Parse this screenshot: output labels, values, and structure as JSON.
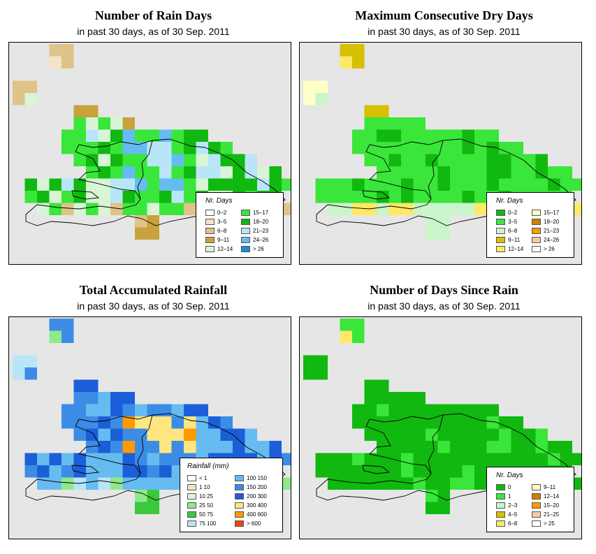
{
  "panels": [
    {
      "title": "Number of Rain Days",
      "subtitle": "in past 30 days, as of  30 Sep. 2011",
      "legend": {
        "title": "Nr. Days",
        "items": [
          {
            "label": "0–2",
            "color": "#ffffff"
          },
          {
            "label": "3–5",
            "color": "#f3e4c4"
          },
          {
            "label": "6–8",
            "color": "#dfc389"
          },
          {
            "label": "9–11",
            "color": "#c9a23c"
          },
          {
            "label": "12–14",
            "color": "#d8f5d6"
          },
          {
            "label": "15–17",
            "color": "#39e639"
          },
          {
            "label": "18–20",
            "color": "#10b810"
          },
          {
            "label": "21–23",
            "color": "#b8e6f8"
          },
          {
            "label": "24–26",
            "color": "#66bcf0"
          },
          {
            "label": "> 26",
            "color": "#1690d0"
          }
        ]
      }
    },
    {
      "title": "Maximum Consecutive Dry Days",
      "subtitle": "in past 30 days, as of  30 Sep. 2011",
      "legend": {
        "title": "Nr. Days",
        "items": [
          {
            "label": "0–2",
            "color": "#10b810"
          },
          {
            "label": "3–5",
            "color": "#39e639"
          },
          {
            "label": "6–8",
            "color": "#c9f5c9"
          },
          {
            "label": "9–11",
            "color": "#d7c000"
          },
          {
            "label": "12–14",
            "color": "#ffe866"
          },
          {
            "label": "15–17",
            "color": "#ffffc8"
          },
          {
            "label": "18–20",
            "color": "#d08000"
          },
          {
            "label": "21–23",
            "color": "#ff9a00"
          },
          {
            "label": "24–26",
            "color": "#ffc8a0"
          },
          {
            "label": "> 26",
            "color": "#ffffff"
          }
        ]
      }
    },
    {
      "title": "Total Accumulated Rainfall",
      "subtitle": "in past 30 days, as of  30 Sep. 2011",
      "legend": {
        "title": "Rainfall (mm)",
        "items": [
          {
            "label": "< 1",
            "color": "#ffffff"
          },
          {
            "label": "1   10",
            "color": "#f3e4c4"
          },
          {
            "label": "10   25",
            "color": "#d8f5d6"
          },
          {
            "label": "25   50",
            "color": "#8ee88e"
          },
          {
            "label": "50   75",
            "color": "#3cc83c"
          },
          {
            "label": "75   100",
            "color": "#b8e6f8"
          },
          {
            "label": "100   150",
            "color": "#66bcf0"
          },
          {
            "label": "150   200",
            "color": "#3c8ce6"
          },
          {
            "label": "200   300",
            "color": "#1c5ed8"
          },
          {
            "label": "300   400",
            "color": "#ffe680"
          },
          {
            "label": "400   600",
            "color": "#ff9a00"
          },
          {
            "label": "> 600",
            "color": "#ff3c14"
          }
        ]
      }
    },
    {
      "title": "Number of Days Since Rain",
      "subtitle": "in past 30 days, as of  30 Sep. 2011",
      "legend": {
        "title": "Nr. Days",
        "items": [
          {
            "label": "0",
            "color": "#10b810"
          },
          {
            "label": "1",
            "color": "#39e639"
          },
          {
            "label": "2–3",
            "color": "#c9f5c9"
          },
          {
            "label": "4–5",
            "color": "#d7c000"
          },
          {
            "label": "6–8",
            "color": "#ffe866"
          },
          {
            "label": "9–11",
            "color": "#ffffc8"
          },
          {
            "label": "12–14",
            "color": "#d08000"
          },
          {
            "label": "15–20",
            "color": "#ff9a00"
          },
          {
            "label": "21–25",
            "color": "#ffc8a0"
          },
          {
            "label": "> 25",
            "color": "#ffffff"
          }
        ]
      }
    }
  ]
}
